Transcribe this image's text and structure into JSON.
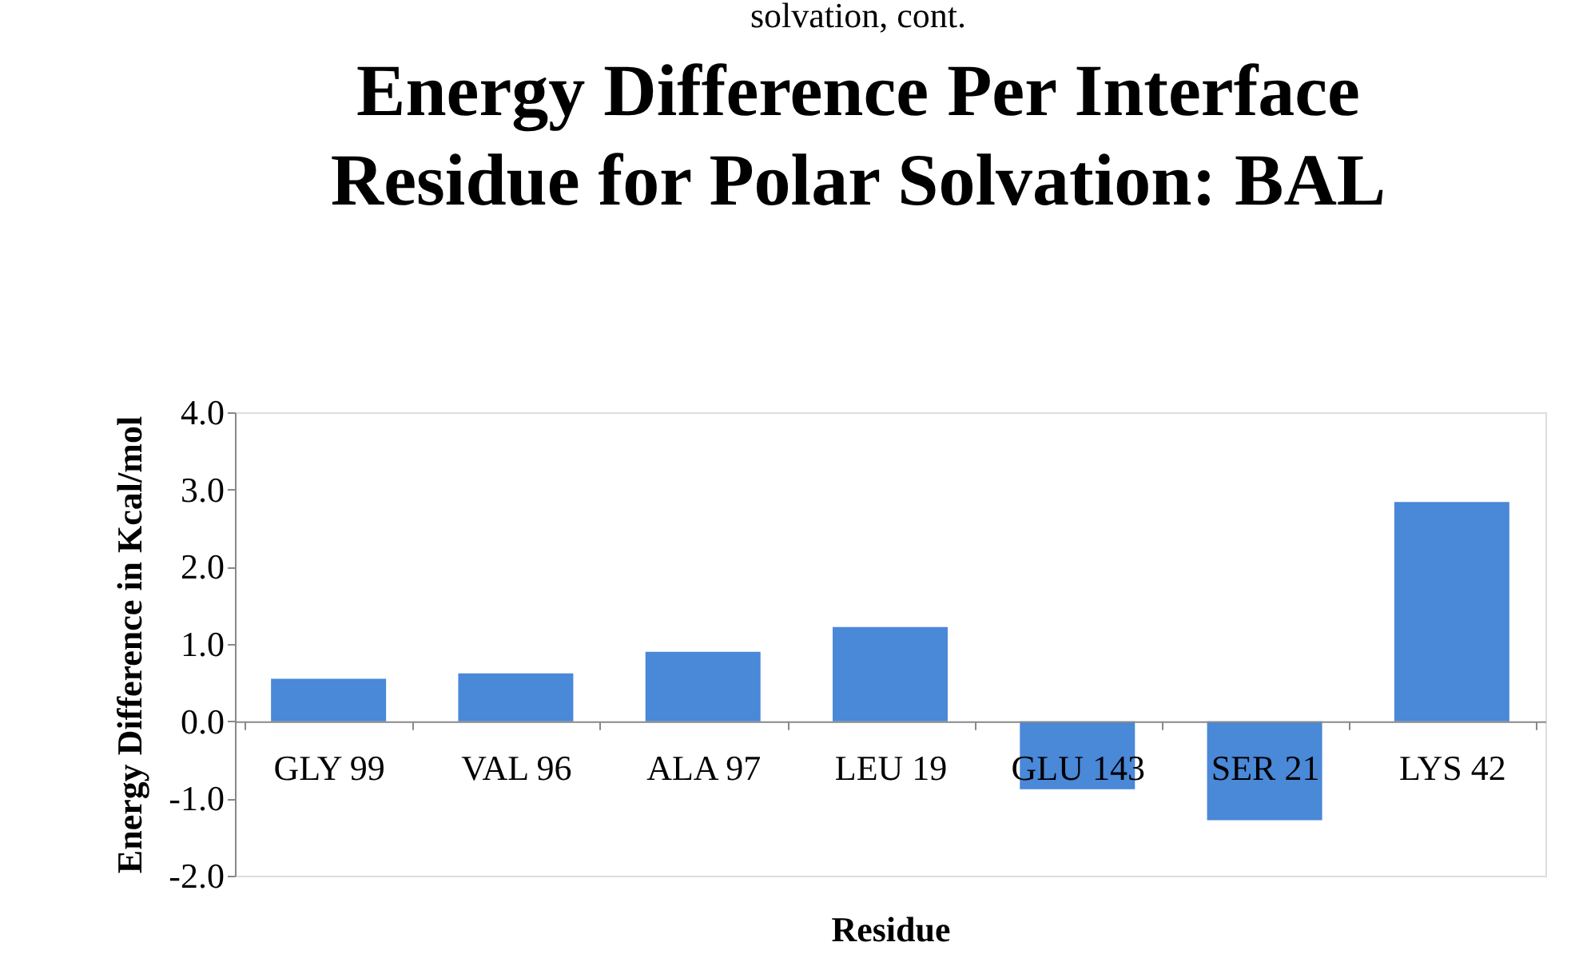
{
  "chart_data": {
    "type": "bar",
    "title": "Energy Difference Per Interface Residue for Polar Solvation: BAL",
    "annotations": [
      "solvation, cont."
    ],
    "xlabel": "Residue",
    "ylabel": "Energy Difference in Kcal/mol",
    "categories": [
      "GLY 99",
      "VAL  96",
      "ALA  97",
      "LEU  19",
      "GLU 143",
      "SER  21",
      "LYS  42"
    ],
    "values": [
      0.55,
      0.62,
      0.9,
      1.22,
      -0.88,
      -1.28,
      2.84
    ],
    "color": "#4a88d8",
    "ylim": [
      -2,
      4
    ],
    "yticks": [
      {
        "value": -2,
        "label": "-2.0"
      },
      {
        "value": -1,
        "label": "-1.0"
      },
      {
        "value": 0,
        "label": "0.0"
      },
      {
        "value": 1,
        "label": "1.0"
      },
      {
        "value": 2,
        "label": "2.0"
      },
      {
        "value": 3,
        "label": "3.0"
      },
      {
        "value": 4,
        "label": "4.0"
      }
    ],
    "grid": false
  }
}
